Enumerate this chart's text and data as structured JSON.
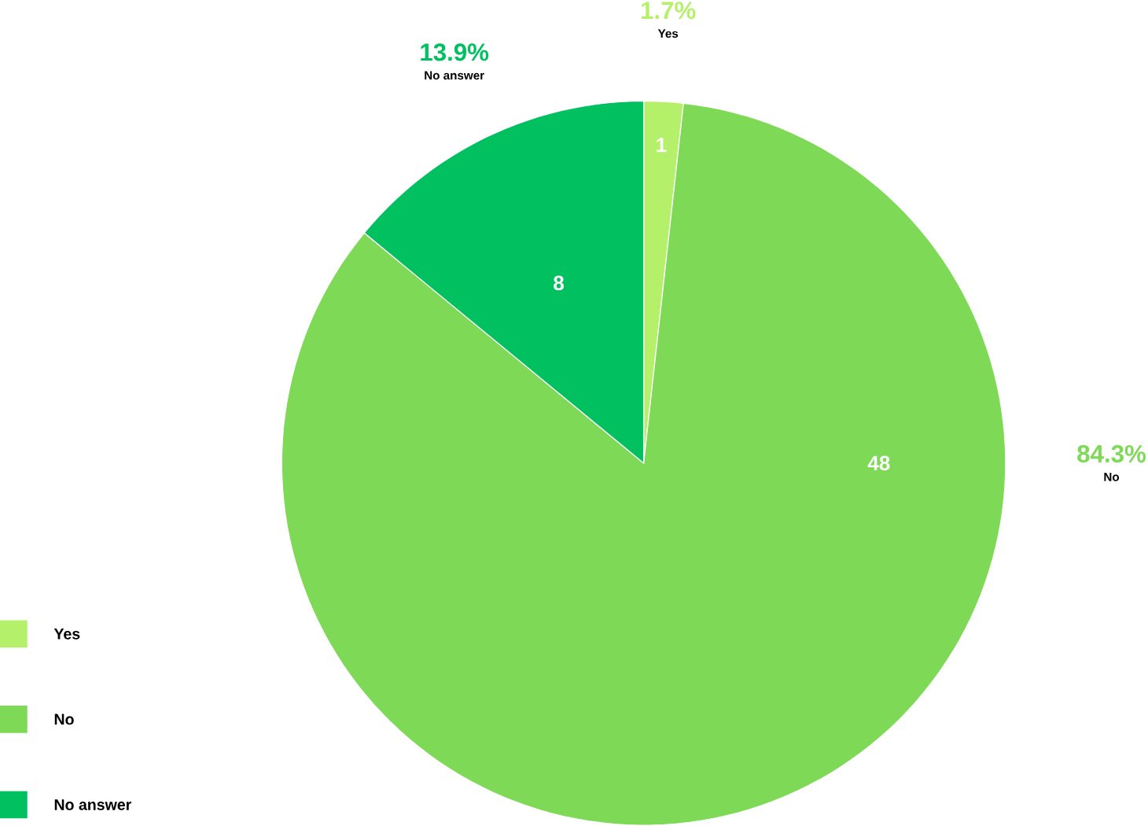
{
  "chart_data": {
    "type": "pie",
    "categories": [
      "Yes",
      "No",
      "No answer"
    ],
    "values": [
      1,
      48,
      8
    ],
    "colors": [
      "#b5f06a",
      "#7ed957",
      "#00c060"
    ],
    "data_labels": true,
    "annotations": [
      "1.7%",
      "84.3%",
      "13.9%"
    ],
    "legend": "bottom left"
  }
}
